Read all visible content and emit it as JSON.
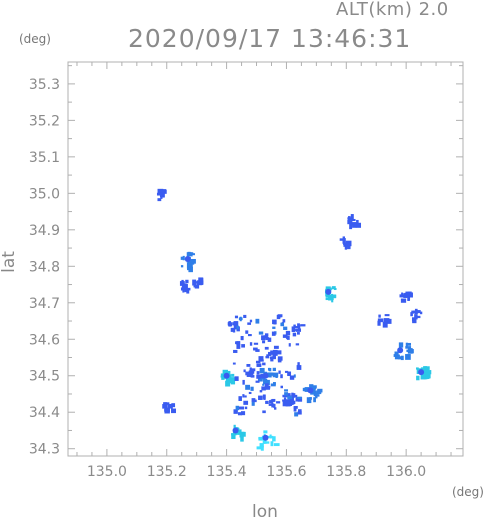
{
  "header": {
    "altitude": "ALT(km) 2.0",
    "timestamp": "2020/09/17 13:46:31"
  },
  "chart_data": {
    "type": "heatmap",
    "title": "2020/09/17 13:46:31",
    "subtitle": "ALT(km) 2.0",
    "xlabel": "lon",
    "ylabel": "lat",
    "xunit": "(deg)",
    "yunit": "(deg)",
    "xlim": [
      134.87,
      136.19
    ],
    "ylim": [
      34.28,
      35.36
    ],
    "xticks": [
      "135.0",
      "135.2",
      "135.4",
      "135.6",
      "135.8",
      "136.0"
    ],
    "yticks": [
      "34.3",
      "34.4",
      "34.5",
      "34.6",
      "34.7",
      "34.8",
      "34.9",
      "35.0",
      "35.1",
      "35.2",
      "35.3"
    ],
    "grid": false,
    "colors": {
      "low": "#3a5cf0",
      "mid": "#2f7fe8",
      "high": "#2bc8e6",
      "peak": "#41e0ff"
    },
    "echoes": [
      {
        "lon": 135.18,
        "lat": 35.0,
        "intensity": "low"
      },
      {
        "lon": 135.2,
        "lat": 34.42,
        "intensity": "low"
      },
      {
        "lon": 135.26,
        "lat": 34.75,
        "intensity": "low"
      },
      {
        "lon": 135.27,
        "lat": 34.82,
        "intensity": "mid"
      },
      {
        "lon": 135.3,
        "lat": 34.76,
        "intensity": "low"
      },
      {
        "lon": 135.43,
        "lat": 34.35,
        "intensity": "high"
      },
      {
        "lon": 135.4,
        "lat": 34.5,
        "intensity": "high"
      },
      {
        "lon": 135.42,
        "lat": 34.64,
        "intensity": "low"
      },
      {
        "lon": 135.53,
        "lat": 34.33,
        "intensity": "peak"
      },
      {
        "lon": 135.53,
        "lat": 34.5,
        "intensity": "mid"
      },
      {
        "lon": 135.56,
        "lat": 34.56,
        "intensity": "low"
      },
      {
        "lon": 135.6,
        "lat": 34.44,
        "intensity": "low"
      },
      {
        "lon": 135.63,
        "lat": 34.63,
        "intensity": "low"
      },
      {
        "lon": 135.68,
        "lat": 34.46,
        "intensity": "mid"
      },
      {
        "lon": 135.74,
        "lat": 34.73,
        "intensity": "high"
      },
      {
        "lon": 135.79,
        "lat": 34.87,
        "intensity": "low"
      },
      {
        "lon": 135.82,
        "lat": 34.93,
        "intensity": "low"
      },
      {
        "lon": 135.98,
        "lat": 34.57,
        "intensity": "mid"
      },
      {
        "lon": 135.99,
        "lat": 34.72,
        "intensity": "low"
      },
      {
        "lon": 136.03,
        "lat": 34.67,
        "intensity": "low"
      },
      {
        "lon": 136.05,
        "lat": 34.51,
        "intensity": "high"
      },
      {
        "lon": 135.92,
        "lat": 34.66,
        "intensity": "low"
      }
    ]
  }
}
